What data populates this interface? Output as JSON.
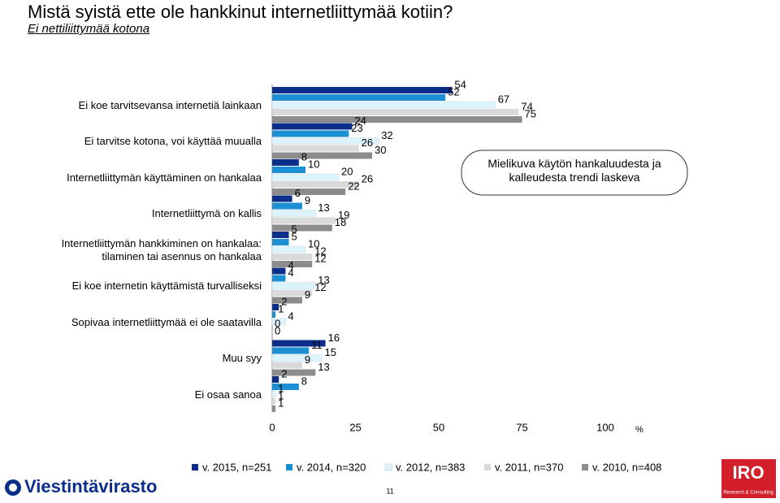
{
  "chart_data": {
    "type": "bar",
    "orientation": "horizontal",
    "title": "Mistä syistä ette ole hankkinut internetliittymää kotiin?",
    "subtitle": "Ei nettiliittymää kotona",
    "categories": [
      "Ei koe tarvitsevansa internetiä lainkaan",
      "Ei tarvitse kotona, voi käyttää muualla",
      "Internetliittymän käyttäminen on hankalaa",
      "Internetliittymä on kallis",
      "Internetliittymän hankkiminen on hankalaa: tilaminen tai asennus on hankalaa",
      "Ei koe internetin käyttämistä turvalliseksi",
      "Sopivaa internetliittymää ei ole saatavilla",
      "Muu syy",
      "Ei osaa sanoa"
    ],
    "series": [
      {
        "name": "v. 2015, n=251",
        "color": "#0b2e8a",
        "values": [
          54,
          24,
          8,
          6,
          5,
          4,
          2,
          16,
          2
        ]
      },
      {
        "name": "v. 2014, n=320",
        "color": "#1b8fd2",
        "values": [
          52,
          23,
          10,
          9,
          5,
          4,
          1,
          11,
          8
        ]
      },
      {
        "name": "v. 2012, n=383",
        "color": "#dcf3fc",
        "values": [
          67,
          32,
          20,
          13,
          10,
          13,
          4,
          15,
          1
        ]
      },
      {
        "name": "v. 2011, n=370",
        "color": "#d9d9d9",
        "values": [
          74,
          26,
          26,
          19,
          12,
          12,
          0,
          9,
          1
        ]
      },
      {
        "name": "v. 2010, n=408",
        "color": "#8c8c8c",
        "values": [
          75,
          30,
          22,
          18,
          12,
          9,
          0,
          13,
          1
        ]
      }
    ],
    "xlim": [
      0,
      100
    ],
    "xticks": [
      0,
      25,
      50,
      75,
      100
    ],
    "x_unit": "%",
    "legend": "bottom",
    "annotation": "Mielikuva käytön hankaluudesta ja kalleudesta trendi laskeva"
  },
  "footer": {
    "page_number": "11",
    "logo_left": "Viestintävirasto",
    "logo_right": "IRO",
    "logo_right_tagline": "Research & Consulting"
  }
}
